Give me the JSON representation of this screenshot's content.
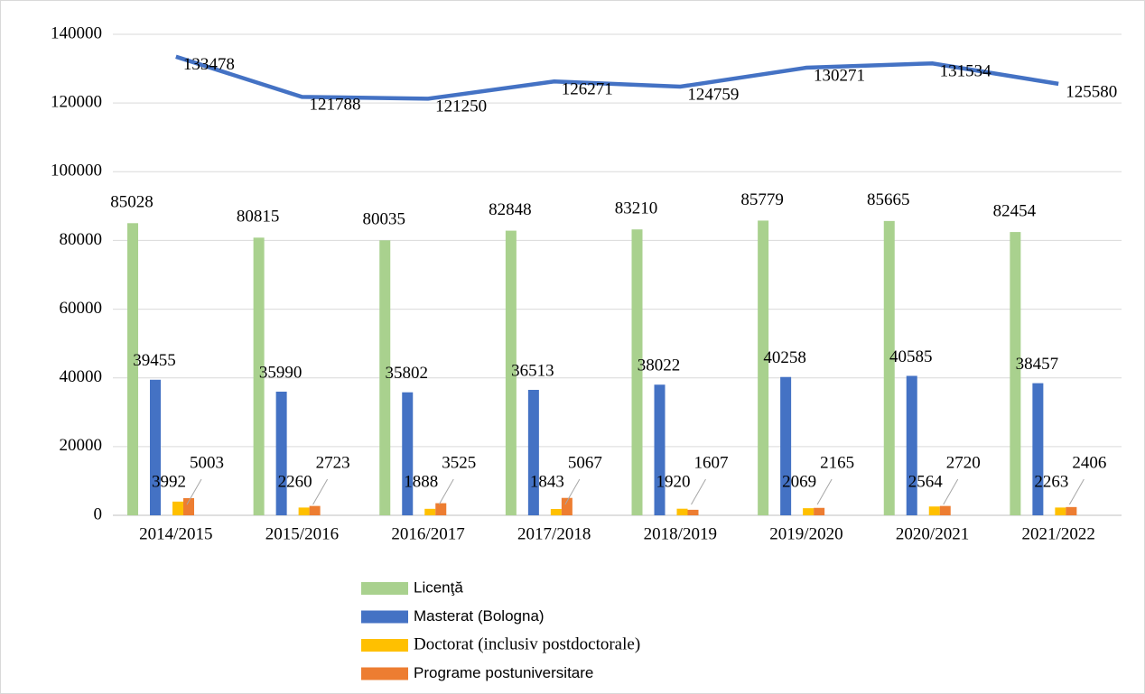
{
  "chart_data": {
    "type": "bar",
    "categories": [
      "2014/2015",
      "2015/2016",
      "2016/2017",
      "2017/2018",
      "2018/2019",
      "2019/2020",
      "2020/2021",
      "2021/2022"
    ],
    "series": [
      {
        "name": "Licenţă",
        "color": "#a9d18e",
        "values": [
          85028,
          80815,
          80035,
          82848,
          83210,
          85779,
          85665,
          82454
        ]
      },
      {
        "name": "Masterat (Bologna)",
        "color": "#4472c4",
        "values": [
          39455,
          35990,
          35802,
          36513,
          38022,
          40258,
          40585,
          38457
        ]
      },
      {
        "name": "Doctorat (inclusiv postdoctorale)",
        "color": "#ffc000",
        "values": [
          3992,
          2260,
          1888,
          1843,
          1920,
          2069,
          2564,
          2263
        ]
      },
      {
        "name": "Programe postuniversitare",
        "color": "#ed7d31",
        "values": [
          5003,
          2723,
          3525,
          5067,
          1607,
          2165,
          2720,
          2406
        ]
      },
      {
        "type": "line",
        "color": "#4472c4",
        "values": [
          133478,
          121788,
          121250,
          126271,
          124759,
          130271,
          131534,
          125580
        ]
      }
    ],
    "ylim": [
      0,
      140000
    ],
    "yticks": [
      0,
      20000,
      40000,
      60000,
      80000,
      100000,
      120000,
      140000
    ],
    "grid": true
  }
}
